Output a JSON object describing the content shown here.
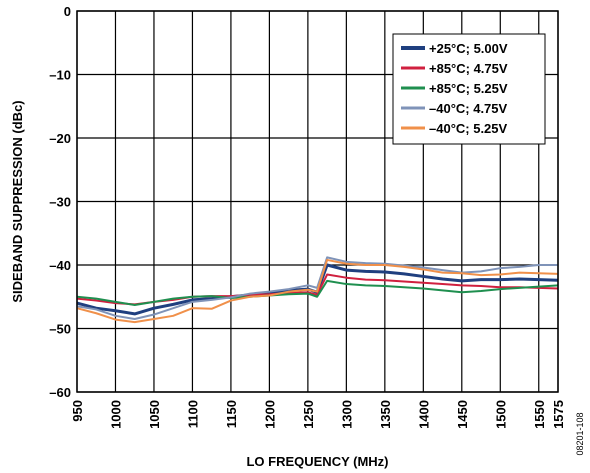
{
  "chart_data": {
    "type": "line",
    "xlabel": "LO FREQUENCY (MHz)",
    "ylabel": "SIDEBAND SUPPRESSION (dBc)",
    "xlim": [
      950,
      1575
    ],
    "ylim": [
      -60,
      0
    ],
    "x_ticks": [
      950,
      1000,
      1050,
      1100,
      1150,
      1200,
      1250,
      1300,
      1350,
      1400,
      1450,
      1500,
      1550,
      1575
    ],
    "y_ticks": [
      0,
      -10,
      -20,
      -30,
      -40,
      -50,
      -60
    ],
    "x_tick_labels": [
      "950",
      "1000",
      "1050",
      "1100",
      "1150",
      "1200",
      "1250",
      "1300",
      "1350",
      "1400",
      "1450",
      "1500",
      "1550",
      "1575"
    ],
    "y_tick_labels": [
      "0",
      "–10",
      "–20",
      "–30",
      "–40",
      "–50",
      "–60"
    ],
    "grid": true,
    "legend_position": "top-right",
    "figure_id": "08201-108",
    "x": [
      950,
      975,
      1000,
      1025,
      1050,
      1075,
      1100,
      1125,
      1150,
      1175,
      1200,
      1225,
      1250,
      1262,
      1275,
      1300,
      1325,
      1350,
      1375,
      1400,
      1425,
      1450,
      1475,
      1500,
      1525,
      1550,
      1575
    ],
    "series": [
      {
        "name": "+25°C; 5.00V",
        "color": "#1f3f7f",
        "width": 3,
        "values": [
          -46.0,
          -46.8,
          -47.2,
          -47.7,
          -46.8,
          -46.2,
          -45.5,
          -45.3,
          -45.0,
          -44.7,
          -44.4,
          -44.0,
          -43.8,
          -44.3,
          -40.0,
          -40.8,
          -41.0,
          -41.1,
          -41.4,
          -41.8,
          -42.2,
          -42.5,
          -42.3,
          -42.3,
          -42.2,
          -42.3,
          -42.4
        ]
      },
      {
        "name": "+85°C; 4.75V",
        "color": "#d0203f",
        "width": 2,
        "values": [
          -45.3,
          -45.6,
          -46.0,
          -46.2,
          -45.8,
          -45.5,
          -45.0,
          -44.9,
          -44.9,
          -44.7,
          -44.6,
          -44.4,
          -44.3,
          -44.7,
          -41.5,
          -42.0,
          -42.3,
          -42.4,
          -42.6,
          -42.8,
          -43.0,
          -43.2,
          -43.3,
          -43.5,
          -43.5,
          -43.6,
          -43.7
        ]
      },
      {
        "name": "+85°C; 5.25V",
        "color": "#1f8f4f",
        "width": 2,
        "values": [
          -45.0,
          -45.3,
          -45.8,
          -46.3,
          -45.8,
          -45.3,
          -45.0,
          -44.9,
          -45.2,
          -45.0,
          -44.8,
          -44.6,
          -44.5,
          -45.0,
          -42.5,
          -43.0,
          -43.2,
          -43.3,
          -43.5,
          -43.7,
          -44.0,
          -44.3,
          -44.1,
          -43.8,
          -43.6,
          -43.4,
          -43.2
        ]
      },
      {
        "name": "–40°C; 4.75V",
        "color": "#7f93b8",
        "width": 2,
        "values": [
          -46.5,
          -47.0,
          -48.0,
          -48.5,
          -47.8,
          -46.8,
          -45.8,
          -45.5,
          -45.1,
          -44.5,
          -44.2,
          -43.8,
          -43.2,
          -43.6,
          -38.8,
          -39.5,
          -39.7,
          -39.8,
          -40.1,
          -40.4,
          -40.8,
          -41.2,
          -41.0,
          -40.5,
          -40.3,
          -40.0,
          -40.0
        ]
      },
      {
        "name": "–40°C; 5.25V",
        "color": "#f0904a",
        "width": 2,
        "values": [
          -46.8,
          -47.6,
          -48.6,
          -49.0,
          -48.5,
          -48.0,
          -46.8,
          -46.9,
          -45.6,
          -45.0,
          -44.8,
          -44.2,
          -43.9,
          -44.2,
          -39.2,
          -39.8,
          -40.0,
          -40.0,
          -40.3,
          -40.7,
          -41.2,
          -41.3,
          -41.6,
          -41.5,
          -41.2,
          -41.3,
          -41.4
        ]
      }
    ]
  }
}
